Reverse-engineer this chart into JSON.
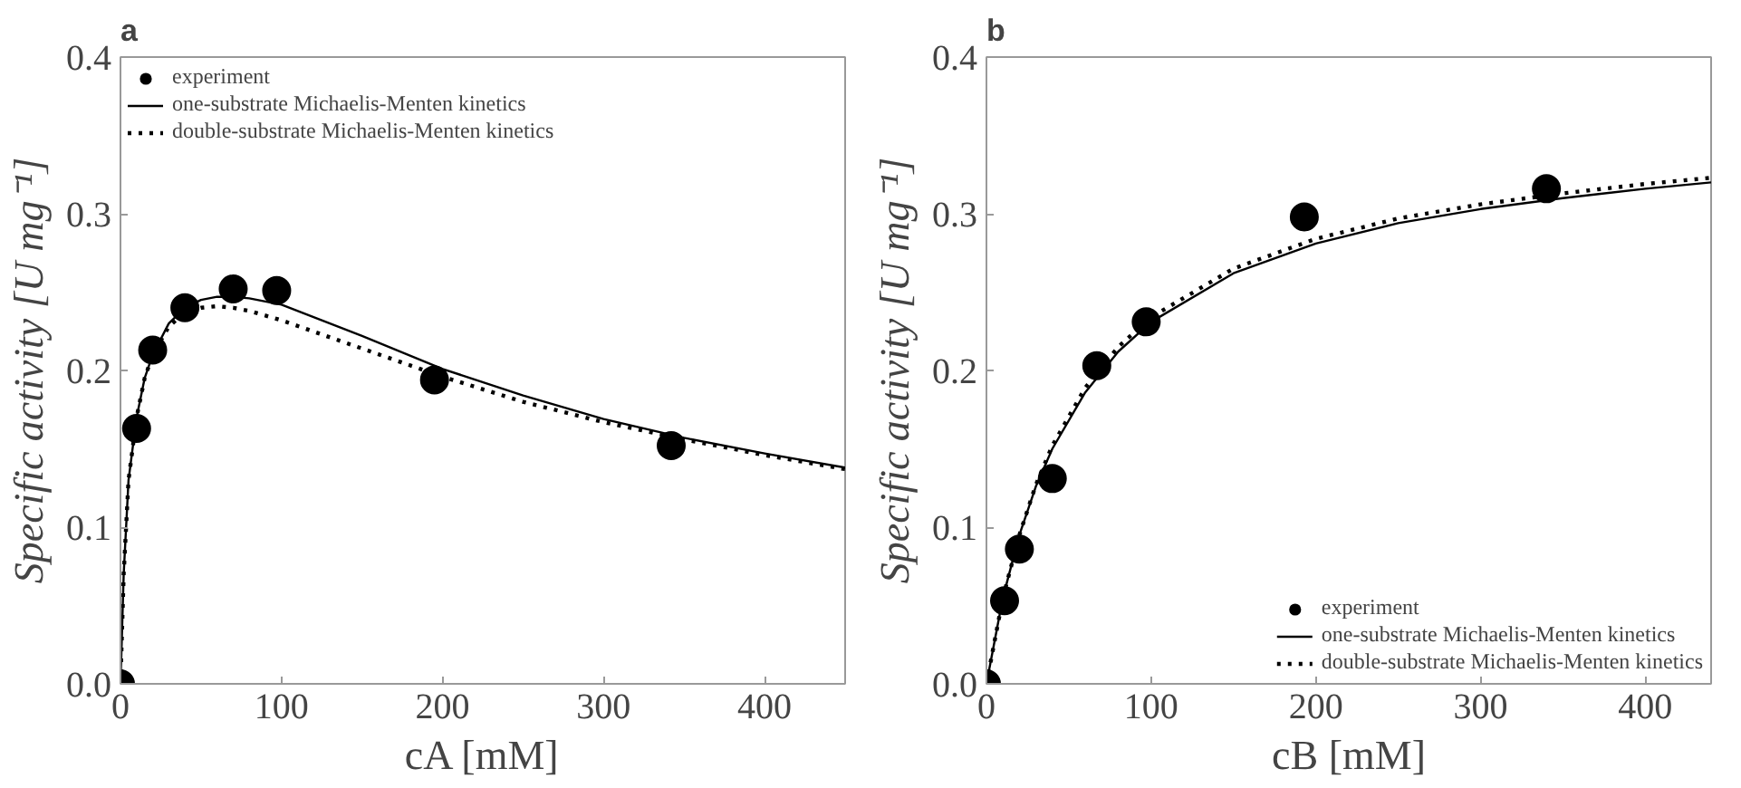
{
  "chart_data": [
    {
      "type": "line",
      "title": "a",
      "xlabel": "cA [mM]",
      "ylabel": "Specific activity [U mg⁻¹]",
      "xlim": [
        0,
        450
      ],
      "ylim": [
        0,
        0.4
      ],
      "xticks": [
        0,
        100,
        200,
        300,
        400
      ],
      "yticks": [
        {
          "value": 0,
          "label": "0.0"
        },
        0.1,
        0.2,
        0.3,
        0.4
      ],
      "grid": false,
      "legend": "top left",
      "series": [
        {
          "name": "experiment",
          "type": "scatter",
          "marker": "circle",
          "color": "#000000",
          "x": [
            0,
            10,
            20,
            40,
            70,
            97,
            195,
            342
          ],
          "values": [
            0,
            0.163,
            0.213,
            0.24,
            0.252,
            0.251,
            0.194,
            0.152
          ]
        },
        {
          "name": "one-substrate Michaelis-Menten kinetics",
          "line_style": "solid",
          "color": "#000000",
          "x": [
            0,
            2,
            5,
            10,
            15,
            20,
            30,
            40,
            50,
            60,
            70,
            80,
            100,
            150,
            200,
            250,
            300,
            350,
            400,
            450
          ],
          "values": [
            0,
            0.07,
            0.13,
            0.17,
            0.195,
            0.21,
            0.23,
            0.24,
            0.245,
            0.247,
            0.247,
            0.246,
            0.242,
            0.222,
            0.201,
            0.184,
            0.169,
            0.157,
            0.147,
            0.138
          ]
        },
        {
          "name": "double-substrate Michaelis-Menten kinetics",
          "line_style": "dotted",
          "color": "#000000",
          "x": [
            0,
            2,
            5,
            10,
            15,
            20,
            30,
            40,
            50,
            60,
            70,
            80,
            100,
            150,
            200,
            250,
            300,
            350,
            400,
            450
          ],
          "values": [
            0,
            0.07,
            0.13,
            0.17,
            0.195,
            0.21,
            0.228,
            0.237,
            0.24,
            0.241,
            0.24,
            0.238,
            0.232,
            0.214,
            0.196,
            0.18,
            0.167,
            0.156,
            0.146,
            0.137
          ]
        }
      ]
    },
    {
      "type": "line",
      "title": "b",
      "xlabel": "cB [mM]",
      "ylabel": "Specific activity [U mg⁻¹]",
      "xlim": [
        0,
        440
      ],
      "ylim": [
        0,
        0.4
      ],
      "xticks": [
        0,
        100,
        200,
        300,
        400
      ],
      "yticks": [
        {
          "value": 0,
          "label": "0.0"
        },
        0.1,
        0.2,
        0.3,
        0.4
      ],
      "grid": false,
      "legend": "bottom right",
      "series": [
        {
          "name": "experiment",
          "type": "scatter",
          "marker": "circle",
          "color": "#000000",
          "x": [
            0,
            11,
            20,
            40,
            67,
            97,
            193,
            340
          ],
          "values": [
            0,
            0.053,
            0.086,
            0.131,
            0.203,
            0.231,
            0.298,
            0.316
          ]
        },
        {
          "name": "one-substrate Michaelis-Menten kinetics",
          "line_style": "solid",
          "color": "#000000",
          "x": [
            0,
            10,
            20,
            30,
            40,
            60,
            80,
            100,
            150,
            200,
            250,
            300,
            350,
            400,
            440
          ],
          "values": [
            0,
            0.055,
            0.095,
            0.126,
            0.15,
            0.186,
            0.212,
            0.231,
            0.262,
            0.281,
            0.294,
            0.303,
            0.31,
            0.316,
            0.32
          ]
        },
        {
          "name": "double-substrate Michaelis-Menten kinetics",
          "line_style": "dotted",
          "color": "#000000",
          "x": [
            0,
            10,
            20,
            30,
            40,
            60,
            80,
            100,
            150,
            200,
            250,
            300,
            350,
            400,
            440
          ],
          "values": [
            0,
            0.055,
            0.095,
            0.127,
            0.152,
            0.189,
            0.215,
            0.234,
            0.265,
            0.284,
            0.297,
            0.306,
            0.313,
            0.319,
            0.323
          ]
        }
      ]
    }
  ]
}
